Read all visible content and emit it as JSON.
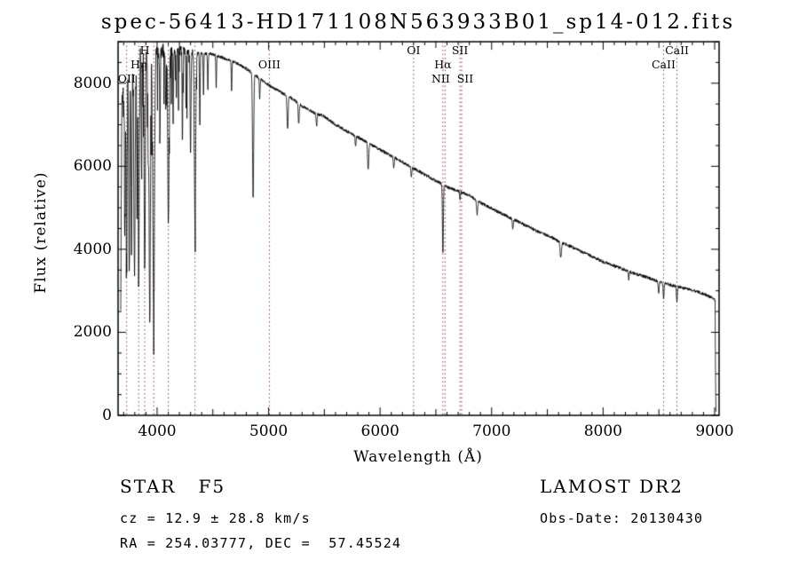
{
  "page": {
    "background": "#ffffff"
  },
  "chart_data": {
    "type": "line",
    "title": "spec-56413-HD171108N563933B01_sp14-012.fits",
    "xlabel": "Wavelength (Å)",
    "ylabel": "Flux (relative)",
    "xlim": [
      3650,
      9040
    ],
    "ylim": [
      0,
      9000
    ],
    "x_ticks": [
      4000,
      5000,
      6000,
      7000,
      8000,
      9000
    ],
    "y_ticks": [
      0,
      2000,
      4000,
      6000,
      8000
    ],
    "x_minor_step": 100,
    "x_medium_step": 500,
    "y_minor_step": 500,
    "line_color": "#000000",
    "axis_color": "#000000",
    "marker_color": "#8b3e3e",
    "grid": false,
    "legend": false,
    "spectral_lines": [
      {
        "wavelength": 3727,
        "label": "OII",
        "row": 3
      },
      {
        "wavelength": 3835,
        "label": "Hη",
        "row": 2
      },
      {
        "wavelength": 3889,
        "label": "H",
        "row": 1
      },
      {
        "wavelength": 3970,
        "label": "",
        "row": 0
      },
      {
        "wavelength": 4101,
        "label": "",
        "row": 0
      },
      {
        "wavelength": 4340,
        "label": "",
        "row": 0
      },
      {
        "wavelength": 5007,
        "label": "OIII",
        "row": 2
      },
      {
        "wavelength": 6300,
        "label": "OI",
        "row": 1
      },
      {
        "wavelength": 6563,
        "label": "Hα",
        "row": 2
      },
      {
        "wavelength": 6583,
        "label": "NII",
        "row": 3,
        "dx": -5
      },
      {
        "wavelength": 6716,
        "label": "SII",
        "row": 1
      },
      {
        "wavelength": 6731,
        "label": "SII",
        "row": 3,
        "dx": 4
      },
      {
        "wavelength": 8542,
        "label": "CaII",
        "row": 2
      },
      {
        "wavelength": 8662,
        "label": "CaII",
        "row": 1
      }
    ],
    "continuum": [
      [
        3674,
        2200
      ],
      [
        3678,
        5200
      ],
      [
        3684,
        7400
      ],
      [
        3700,
        7800
      ],
      [
        3720,
        8000
      ],
      [
        3760,
        8150
      ],
      [
        3800,
        8300
      ],
      [
        3840,
        8650
      ],
      [
        3900,
        8650
      ],
      [
        3960,
        8550
      ],
      [
        4000,
        8700
      ],
      [
        4060,
        8800
      ],
      [
        4120,
        8750
      ],
      [
        4200,
        8800
      ],
      [
        4300,
        8750
      ],
      [
        4400,
        8720
      ],
      [
        4500,
        8700
      ],
      [
        4600,
        8600
      ],
      [
        4700,
        8500
      ],
      [
        4800,
        8350
      ],
      [
        4900,
        8150
      ],
      [
        5000,
        7950
      ],
      [
        5100,
        7800
      ],
      [
        5200,
        7650
      ],
      [
        5300,
        7450
      ],
      [
        5400,
        7300
      ],
      [
        5500,
        7200
      ],
      [
        5600,
        7000
      ],
      [
        5700,
        6850
      ],
      [
        5800,
        6700
      ],
      [
        5900,
        6550
      ],
      [
        6000,
        6400
      ],
      [
        6100,
        6250
      ],
      [
        6200,
        6100
      ],
      [
        6300,
        5950
      ],
      [
        6400,
        5800
      ],
      [
        6500,
        5650
      ],
      [
        6600,
        5500
      ],
      [
        6700,
        5400
      ],
      [
        6800,
        5300
      ],
      [
        6900,
        5120
      ],
      [
        7000,
        4980
      ],
      [
        7100,
        4850
      ],
      [
        7200,
        4720
      ],
      [
        7300,
        4580
      ],
      [
        7400,
        4450
      ],
      [
        7500,
        4330
      ],
      [
        7600,
        4200
      ],
      [
        7700,
        4080
      ],
      [
        7800,
        3950
      ],
      [
        7900,
        3830
      ],
      [
        8000,
        3700
      ],
      [
        8100,
        3600
      ],
      [
        8200,
        3500
      ],
      [
        8300,
        3400
      ],
      [
        8400,
        3320
      ],
      [
        8500,
        3220
      ],
      [
        8600,
        3140
      ],
      [
        8700,
        3080
      ],
      [
        8800,
        3010
      ],
      [
        8900,
        2930
      ],
      [
        8960,
        2850
      ],
      [
        9000,
        2790
      ],
      [
        9004,
        2750
      ],
      [
        9008,
        900
      ],
      [
        9012,
        60
      ]
    ],
    "absorption_lines": [
      [
        3712,
        3200,
        4
      ],
      [
        3727,
        4200,
        4
      ],
      [
        3750,
        4800,
        4
      ],
      [
        3770,
        4300,
        4
      ],
      [
        3798,
        5000,
        5
      ],
      [
        3820,
        2800,
        3
      ],
      [
        3835,
        5400,
        5
      ],
      [
        3860,
        2400,
        3
      ],
      [
        3889,
        5200,
        5
      ],
      [
        3920,
        2200,
        3
      ],
      [
        3934,
        6200,
        6
      ],
      [
        3969,
        6100,
        7
      ],
      [
        4026,
        2000,
        3
      ],
      [
        4077,
        1500,
        3
      ],
      [
        4101,
        4200,
        6
      ],
      [
        4144,
        1700,
        3
      ],
      [
        4173,
        1300,
        3
      ],
      [
        4227,
        2200,
        3
      ],
      [
        4260,
        1400,
        3
      ],
      [
        4300,
        2400,
        4
      ],
      [
        4340,
        4100,
        6
      ],
      [
        4383,
        1800,
        3
      ],
      [
        4416,
        1000,
        3
      ],
      [
        4455,
        900,
        3
      ],
      [
        4530,
        800,
        3
      ],
      [
        4668,
        700,
        3
      ],
      [
        4861,
        3000,
        5
      ],
      [
        4920,
        500,
        3
      ],
      [
        5170,
        800,
        5
      ],
      [
        5270,
        500,
        4
      ],
      [
        5430,
        300,
        4
      ],
      [
        5780,
        250,
        4
      ],
      [
        5893,
        650,
        5
      ],
      [
        6122,
        250,
        4
      ],
      [
        6280,
        250,
        4
      ],
      [
        6563,
        1650,
        4
      ],
      [
        6717,
        200,
        3
      ],
      [
        6870,
        330,
        5
      ],
      [
        7190,
        220,
        5
      ],
      [
        7620,
        380,
        6
      ],
      [
        8230,
        180,
        4
      ],
      [
        8498,
        260,
        4
      ],
      [
        8542,
        380,
        4
      ],
      [
        8662,
        380,
        4
      ]
    ],
    "noise": {
      "base": 38,
      "blue_cutoff": 4400,
      "blue_slope": 0.42,
      "spike_prob": 0.1,
      "spike_max": 1600,
      "seed": 12345
    },
    "sample_step": 2
  },
  "annotations": {
    "object_class": "STAR   F5",
    "survey": "LAMOST DR2",
    "cz": "cz = 12.9 ± 28.8 km/s",
    "obs_date": "Obs-Date: 20130430",
    "coords": "RA = 254.03777, DEC =  57.45524"
  }
}
